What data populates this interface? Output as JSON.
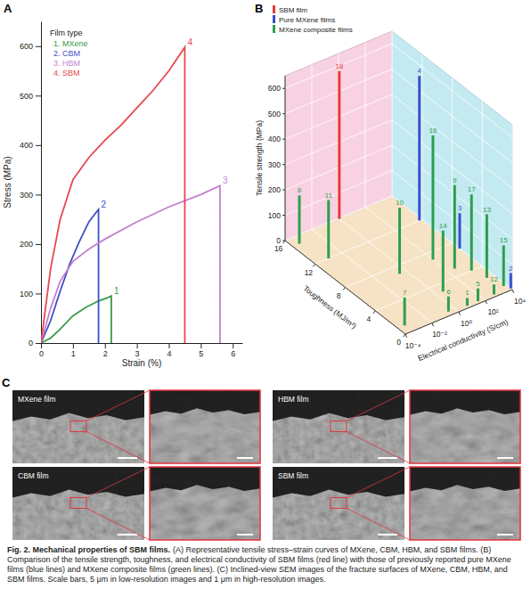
{
  "chart_data": [
    {
      "panel": "A",
      "type": "line",
      "x_label": "Strain (%)",
      "y_label": "Stress (MPa)",
      "legend_title": "Film type",
      "legend": "top-left",
      "xlim": [
        0,
        6.3
      ],
      "xticks": [
        0,
        1,
        2,
        3,
        4,
        5,
        6
      ],
      "ylim": [
        0,
        650
      ],
      "yticks": [
        0,
        100,
        200,
        300,
        400,
        500,
        600
      ],
      "series": [
        {
          "name": "1. MXene",
          "end_label": "1",
          "color": "#3a9a4a",
          "x": [
            0,
            0.3,
            0.6,
            1.0,
            1.4,
            1.8,
            2.1,
            2.2,
            2.2
          ],
          "values": [
            0,
            10,
            28,
            55,
            72,
            85,
            92,
            95,
            0
          ]
        },
        {
          "name": "2. CBM",
          "end_label": "2",
          "color": "#3f4fc8",
          "x": [
            0,
            0.3,
            0.6,
            0.9,
            1.2,
            1.5,
            1.75,
            1.8,
            1.8
          ],
          "values": [
            0,
            45,
            105,
            160,
            205,
            245,
            266,
            270,
            0
          ]
        },
        {
          "name": "3. HBM",
          "end_label": "3",
          "color": "#c57fd0",
          "x": [
            0,
            0.3,
            0.6,
            1.0,
            1.5,
            2,
            3,
            4,
            5,
            5.6,
            5.6
          ],
          "values": [
            0,
            70,
            125,
            165,
            190,
            210,
            245,
            275,
            300,
            318,
            0
          ]
        },
        {
          "name": "4. SBM",
          "end_label": "4",
          "color": "#e8474f",
          "x": [
            0,
            0.3,
            0.6,
            1.0,
            1.5,
            2,
            2.5,
            3,
            3.5,
            4,
            4.5,
            4.5
          ],
          "values": [
            0,
            150,
            250,
            330,
            375,
            410,
            440,
            475,
            510,
            550,
            598,
            0
          ]
        }
      ]
    },
    {
      "panel": "B",
      "type": "bar3d",
      "y_label": "Tensile strength (MPa)",
      "z_label": "Toughness (MJ/m³)",
      "x_label": "Electrical conductivity (S/cm)",
      "log": "x",
      "legend": "top-left",
      "xlim": [
        0.0001,
        10000
      ],
      "xticks": [
        {
          "value": 0.0001,
          "label": "10⁻⁴"
        },
        {
          "value": 0.01,
          "label": "10⁻²"
        },
        {
          "value": 1,
          "label": "10⁰"
        },
        {
          "value": 100,
          "label": "10²"
        },
        {
          "value": 10000,
          "label": "10⁴"
        }
      ],
      "ylim": [
        0,
        650
      ],
      "yticks": [
        0,
        100,
        200,
        300,
        400,
        500,
        600
      ],
      "zlim": [
        0,
        16
      ],
      "zticks": [
        0,
        4,
        8,
        12,
        16
      ],
      "series": [
        {
          "name": "SBM film",
          "color": "#e8383d",
          "labels": [
            "18"
          ],
          "x": [
            1
          ],
          "z": [
            15.9
          ],
          "values": [
            583
          ]
        },
        {
          "name": "Pure MXene films",
          "color": "#3a4fd0",
          "labels": [
            "4",
            "3",
            "2"
          ],
          "x": [
            6310,
            10000,
            10000
          ],
          "z": [
            12,
            7,
            0.2
          ],
          "values": [
            570,
            140,
            60
          ]
        },
        {
          "name": "MXene composite films",
          "color": "#2e9e4f",
          "labels": [
            "1",
            "5",
            "6",
            "7",
            "8",
            "9",
            "10",
            "11",
            "12",
            "13",
            "14",
            "15",
            "16",
            "17"
          ],
          "x": [
            6.3,
            40,
            0.32,
            0.00032,
            0.00032,
            316,
            0.32,
            0.001,
            630,
            3160,
            3.2,
            6310,
            100,
            1580
          ],
          "z": [
            0.3,
            0.3,
            0.5,
            1,
            15,
            5,
            7,
            12,
            0.3,
            2.5,
            3,
            0.8,
            7,
            4
          ],
          "values": [
            30,
            50,
            60,
            110,
            190,
            330,
            260,
            230,
            40,
            250,
            240,
            160,
            490,
            300
          ]
        }
      ]
    }
  ],
  "panel_c": {
    "letter": "C",
    "images": [
      {
        "label": "MXene film"
      },
      {
        "label": "HBM film"
      },
      {
        "label": "CBM film"
      },
      {
        "label": "SBM film"
      }
    ]
  },
  "caption": {
    "title": "Fig. 2. Mechanical properties of SBM films.",
    "text": "(A) Representative tensile stress–strain curves of MXene, CBM, HBM, and SBM films. (B) Comparison of the tensile strength, toughness, and electrical conductivity of SBM films (red line) with those of previously reported pure MXene films (blue lines) and MXene composite films (green lines). (C) Inclined-view SEM images of the fracture surfaces of MXene, CBM, HBM, and SBM films. Scale bars, 5 μm in low-resolution images and 1 μm in high-resolution images."
  }
}
